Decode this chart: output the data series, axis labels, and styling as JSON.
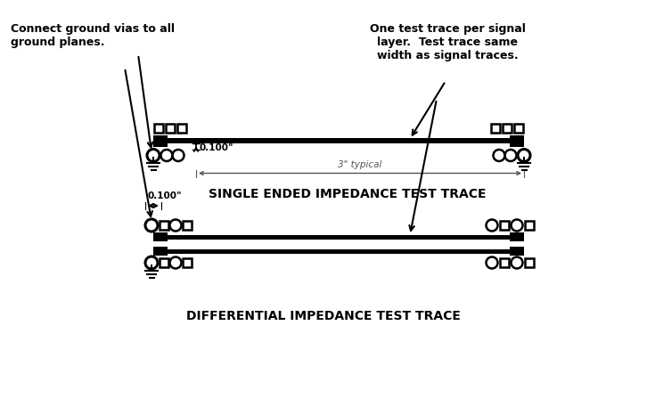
{
  "bg_color": "#ffffff",
  "line_color": "#000000",
  "annotation1": "Connect ground vias to all\nground planes.",
  "annotation2": "One test trace per signal\nlayer.  Test trace same\nwidth as signal traces.",
  "label_single": "SINGLE ENDED IMPEDANCE TEST TRACE",
  "label_diff": "DIFFERENTIAL IMPEDANCE TEST TRACE",
  "dim_100_single": "0.100\"",
  "dim_3in": "3\" typical",
  "dim_100_diff": "0.100\""
}
